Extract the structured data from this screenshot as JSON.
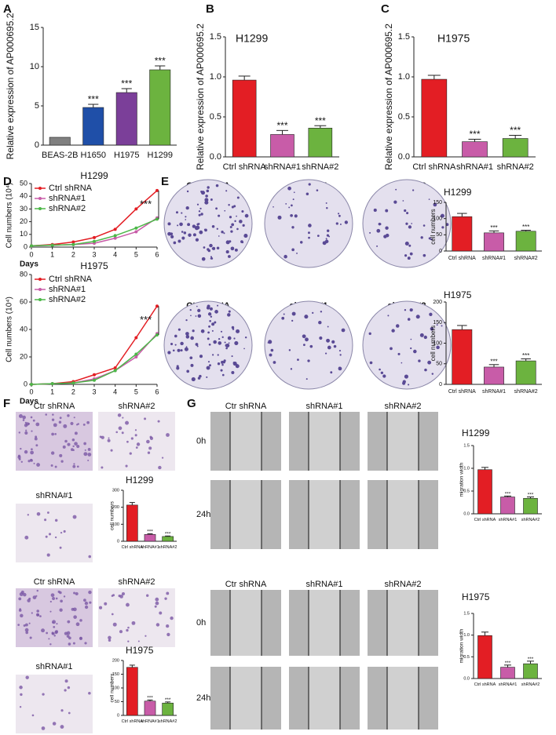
{
  "panels": [
    "A",
    "B",
    "C",
    "D",
    "E",
    "F",
    "G"
  ],
  "colony_labels": [
    "Ctr shRNA",
    "shRNA#1",
    "shRNA#2"
  ],
  "transwell_labels": [
    "Ctr shRNA",
    "shRNA#2",
    "shRNA#1"
  ],
  "wound_labels": [
    "Ctr shRNA",
    "shRNA#1",
    "shRNA#2"
  ],
  "wound_times": [
    "0h",
    "24h"
  ],
  "chart_data": [
    {
      "type": "bar",
      "ylabel": "Relative expression of AP000695.2",
      "categories": [
        "BEAS-2B",
        "H1650",
        "H1975",
        "H1299"
      ],
      "values": [
        1,
        4.8,
        6.7,
        9.6
      ],
      "errors": [
        0,
        0.4,
        0.5,
        0.5
      ],
      "colors": [
        "#808080",
        "#1f4fa8",
        "#7b3f99",
        "#6cb33f"
      ],
      "annotations": [
        null,
        "***",
        "***",
        "***"
      ],
      "ylim": [
        0,
        15
      ],
      "yticks": [
        0,
        5,
        10,
        15
      ]
    },
    {
      "type": "bar",
      "title": "H1299",
      "ylabel": "Relative expression of AP000695.2",
      "categories": [
        "Ctrl shRNA",
        "shRNA#1",
        "shRNA#2"
      ],
      "values": [
        0.96,
        0.28,
        0.36
      ],
      "errors": [
        0.05,
        0.05,
        0.03
      ],
      "colors": [
        "#e31e24",
        "#c85ca8",
        "#6cb33f"
      ],
      "annotations": [
        null,
        "***",
        "***"
      ],
      "ylim": [
        0,
        1.5
      ],
      "yticks": [
        {
          "value": 0,
          "label": "0.0"
        },
        0.5,
        {
          "value": 1,
          "label": "1.0"
        },
        1.5
      ]
    },
    {
      "type": "bar",
      "title": "H1975",
      "ylabel": "Relative expression of AP000695.2",
      "categories": [
        "Ctrl shRNA",
        "shRNA#1",
        "shRNA#2"
      ],
      "values": [
        0.97,
        0.19,
        0.23
      ],
      "errors": [
        0.05,
        0.03,
        0.04
      ],
      "colors": [
        "#e31e24",
        "#c85ca8",
        "#6cb33f"
      ],
      "annotations": [
        null,
        "***",
        "***"
      ],
      "ylim": [
        0,
        1.5
      ],
      "yticks": [
        {
          "value": 0,
          "label": "0.0"
        },
        0.5,
        {
          "value": 1,
          "label": "1.0"
        },
        1.5
      ]
    },
    {
      "type": "line",
      "title": "H1299",
      "ylabel": "Cell numbers (10⁴)",
      "xlabel": "Days",
      "annotation": "***",
      "x": [
        0,
        1,
        2,
        3,
        4,
        5,
        6
      ],
      "xlim": [
        0,
        6
      ],
      "xticks": [
        0,
        1,
        2,
        3,
        4,
        5,
        6
      ],
      "series": [
        {
          "name": "Ctrl shRNA",
          "color": "#e31e24",
          "values": [
            1,
            2,
            4,
            7.5,
            14,
            30,
            44.5
          ]
        },
        {
          "name": "shRNA#1",
          "color": "#c85ca8",
          "values": [
            1,
            1.5,
            2,
            3,
            7,
            12,
            23
          ]
        },
        {
          "name": "shRNA#2",
          "color": "#4cb748",
          "values": [
            1,
            1.5,
            2,
            4.5,
            9,
            15,
            22
          ]
        }
      ],
      "ylim": [
        0,
        50
      ],
      "yticks": [
        0,
        10,
        20,
        30,
        40,
        50
      ]
    },
    {
      "type": "line",
      "title": "H1975",
      "ylabel": "Cell numbers (10⁴)",
      "xlabel": "Days",
      "annotation": "***",
      "x": [
        0,
        1,
        2,
        3,
        4,
        5,
        6
      ],
      "xlim": [
        0,
        6
      ],
      "xticks": [
        0,
        1,
        2,
        3,
        4,
        5,
        6
      ],
      "series": [
        {
          "name": "Ctrl shRNA",
          "color": "#e31e24",
          "values": [
            0,
            0.5,
            2,
            7,
            12,
            34,
            57
          ]
        },
        {
          "name": "shRNA#1",
          "color": "#c85ca8",
          "values": [
            0,
            0.5,
            1,
            4,
            10,
            20,
            37
          ]
        },
        {
          "name": "shRNA#2",
          "color": "#4cb748",
          "values": [
            0,
            0.5,
            1,
            3,
            10,
            22,
            36
          ]
        }
      ],
      "ylim": [
        0,
        80
      ],
      "yticks": [
        0,
        20,
        40,
        60,
        80
      ]
    },
    {
      "type": "bar",
      "title": "H1299",
      "ylabel": "cell numbers",
      "categories": [
        "Ctrl shRNA",
        "shRNA#1",
        "shRNA#2"
      ],
      "values": [
        106,
        56,
        61
      ],
      "errors": [
        10,
        6,
        3
      ],
      "colors": [
        "#e31e24",
        "#c85ca8",
        "#6cb33f"
      ],
      "annotations": [
        null,
        "***",
        "***"
      ],
      "ylim": [
        0,
        150
      ],
      "yticks": [
        0,
        50,
        100,
        150
      ]
    },
    {
      "type": "bar",
      "title": "H1975",
      "ylabel": "cell numbers",
      "categories": [
        "Ctrl shRNA",
        "shRNA#1",
        "shRNA#2"
      ],
      "values": [
        133,
        42,
        57
      ],
      "errors": [
        10,
        6,
        5
      ],
      "colors": [
        "#e31e24",
        "#c85ca8",
        "#6cb33f"
      ],
      "annotations": [
        null,
        "***",
        "***"
      ],
      "ylim": [
        0,
        200
      ],
      "yticks": [
        0,
        50,
        100,
        150,
        200
      ]
    },
    {
      "type": "bar",
      "title": "H1299",
      "ylabel": "cell numbers",
      "categories": [
        "Ctrl shRNA",
        "shRNA#1",
        "shRNA#2"
      ],
      "values": [
        213,
        40,
        28
      ],
      "errors": [
        15,
        4,
        3
      ],
      "colors": [
        "#e31e24",
        "#c85ca8",
        "#6cb33f"
      ],
      "annotations": [
        null,
        "***",
        "***"
      ],
      "ylim": [
        0,
        300
      ],
      "yticks": [
        0,
        100,
        200,
        300
      ]
    },
    {
      "type": "bar",
      "title": "H1975",
      "ylabel": "cell numbers",
      "categories": [
        "Ctrl shRNA",
        "shRNA#1",
        "shRNA#2"
      ],
      "values": [
        175,
        52,
        45
      ],
      "errors": [
        8,
        4,
        4
      ],
      "colors": [
        "#e31e24",
        "#c85ca8",
        "#6cb33f"
      ],
      "annotations": [
        null,
        "***",
        "***"
      ],
      "ylim": [
        0,
        200
      ],
      "yticks": [
        0,
        50,
        100,
        150,
        200
      ]
    },
    {
      "type": "bar",
      "title": "H1299",
      "ylabel": "migration width",
      "categories": [
        "Ctrl shRNA",
        "shRNA#1",
        "shRNA#2"
      ],
      "values": [
        0.97,
        0.37,
        0.34
      ],
      "errors": [
        0.05,
        0.02,
        0.03
      ],
      "colors": [
        "#e31e24",
        "#c85ca8",
        "#6cb33f"
      ],
      "annotations": [
        null,
        "***",
        "***"
      ],
      "ylim": [
        0,
        1.5
      ],
      "yticks": [
        {
          "value": 0,
          "label": "0.0"
        },
        0.5,
        {
          "value": 1,
          "label": "1.0"
        },
        1.5
      ]
    },
    {
      "type": "bar",
      "title": "H1975",
      "ylabel": "migration width",
      "categories": [
        "Ctrl shRNA",
        "shRNA#1",
        "shRNA#2"
      ],
      "values": [
        0.99,
        0.26,
        0.34
      ],
      "errors": [
        0.08,
        0.05,
        0.06
      ],
      "colors": [
        "#e31e24",
        "#c85ca8",
        "#6cb33f"
      ],
      "annotations": [
        null,
        "***",
        "***"
      ],
      "ylim": [
        0,
        1.5
      ],
      "yticks": [
        {
          "value": 0,
          "label": "0.0"
        },
        0.5,
        {
          "value": 1,
          "label": "1.0"
        },
        1.5
      ]
    }
  ]
}
